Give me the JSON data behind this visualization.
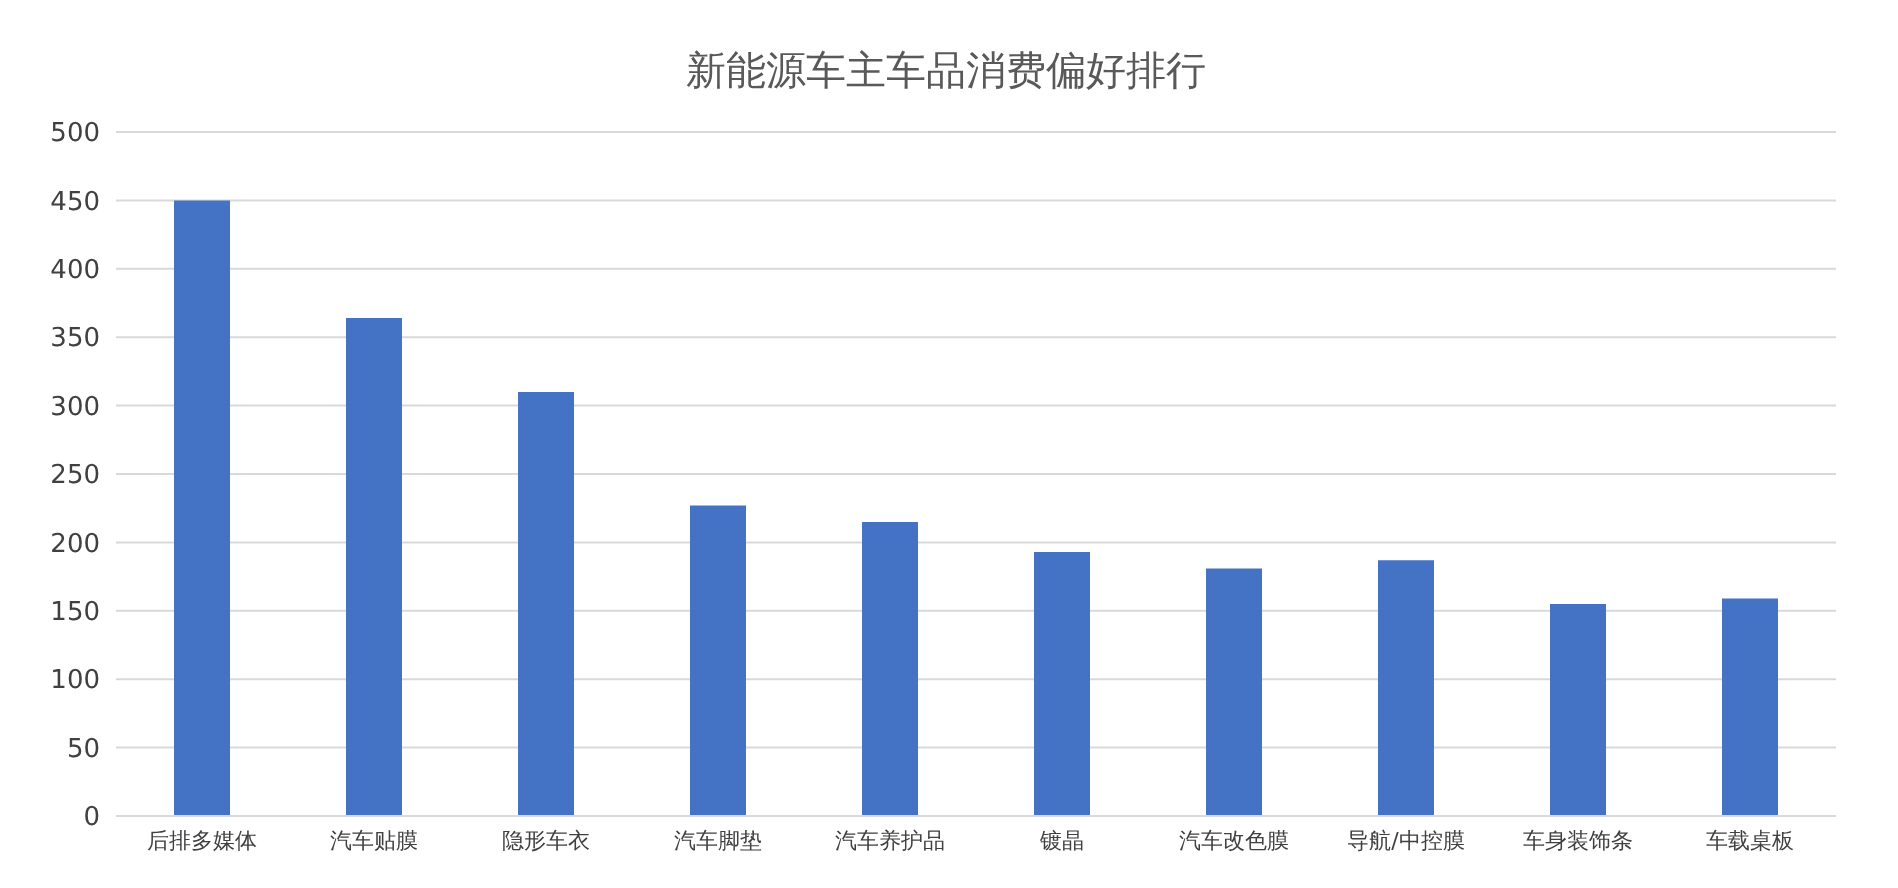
{
  "chart_data": {
    "type": "bar",
    "title": "新能源车主车品消费偏好排行",
    "categories": [
      "后排多媒体",
      "汽车贴膜",
      "隐形车衣",
      "汽车脚垫",
      "汽车养护品",
      "镀晶",
      "汽车改色膜",
      "导航/中控膜",
      "车身装饰条",
      "车载桌板"
    ],
    "values": [
      450,
      364,
      310,
      227,
      215,
      193,
      181,
      187,
      155,
      159
    ],
    "color": "#4472c4",
    "ylim": [
      0,
      500
    ],
    "yticks": [
      0,
      50,
      100,
      150,
      200,
      250,
      300,
      350,
      400,
      450,
      500
    ],
    "grid": "y"
  }
}
